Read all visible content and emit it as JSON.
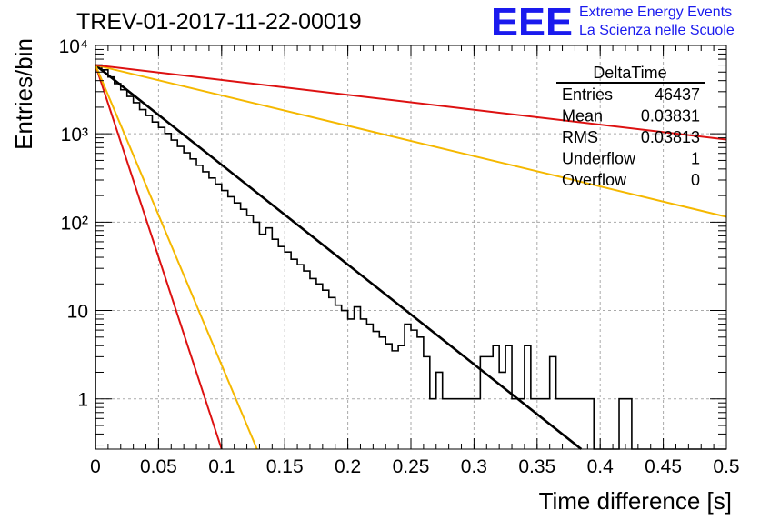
{
  "header": {
    "title": "TREV-01-2017-11-22-00019",
    "logo_text": "EEE",
    "logo_line1": "Extreme Energy Events",
    "logo_line2": "La Scienza nelle Scuole"
  },
  "stats": {
    "title": "DeltaTime",
    "rows": [
      {
        "label": "Entries",
        "value": "46437"
      },
      {
        "label": "Mean",
        "value": "0.03831"
      },
      {
        "label": "RMS",
        "value": "0.03813"
      },
      {
        "label": "Underflow",
        "value": "1"
      },
      {
        "label": "Overflow",
        "value": "0"
      }
    ]
  },
  "chart_data": {
    "type": "line",
    "title": "TREV-01-2017-11-22-00019",
    "xlabel": "Time difference [s]",
    "ylabel": "Entries/bin",
    "xlim": [
      0,
      0.5
    ],
    "ylim": [
      0.27,
      10000
    ],
    "yscale": "log",
    "grid": true,
    "x_ticks": [
      "0",
      "0.05",
      "0.1",
      "0.15",
      "0.2",
      "0.25",
      "0.3",
      "0.35",
      "0.4",
      "0.45",
      "0.5"
    ],
    "x_tick_values": [
      0,
      0.05,
      0.1,
      0.15,
      0.2,
      0.25,
      0.3,
      0.35,
      0.4,
      0.45,
      0.5
    ],
    "y_ticks": [
      {
        "label": "1",
        "value": 1
      },
      {
        "label": "10",
        "value": 10
      },
      {
        "label": "10²",
        "value": 100
      },
      {
        "label": "10³",
        "value": 1000
      },
      {
        "label": "10⁴",
        "value": 10000
      }
    ],
    "histogram": {
      "bin_width": 0.005,
      "x_start": 0,
      "counts": [
        6000,
        5300,
        4400,
        3700,
        3150,
        2650,
        2250,
        1880,
        1610,
        1360,
        1180,
        1010,
        850,
        720,
        610,
        520,
        440,
        372,
        316,
        270,
        228,
        194,
        165,
        140,
        119,
        100,
        73,
        86,
        64,
        53,
        46,
        38,
        33,
        28,
        23,
        20,
        17,
        14,
        11.5,
        10,
        8,
        11,
        8,
        7,
        5.8,
        5,
        4.2,
        3.5,
        4,
        7,
        6,
        5,
        3,
        1,
        2,
        1,
        1,
        1,
        1,
        1,
        1,
        3,
        3,
        4,
        2,
        4,
        1,
        1,
        4,
        1,
        1,
        1,
        3,
        1,
        1,
        1,
        1,
        1,
        1,
        0,
        0,
        0,
        0,
        1,
        1,
        0,
        0,
        0,
        0,
        0,
        0,
        0,
        0,
        0,
        0,
        0,
        0,
        0,
        0,
        0
      ]
    },
    "fits": [
      {
        "color": "#000000",
        "x": [
          0,
          0.385
        ],
        "y": [
          6000,
          0.27
        ]
      },
      {
        "color": "#dd1111",
        "x": [
          0,
          0.1
        ],
        "y": [
          6000,
          0.27
        ]
      },
      {
        "color": "#f5b800",
        "x": [
          0,
          0.128
        ],
        "y": [
          6000,
          0.27
        ]
      },
      {
        "color": "#f5b800",
        "x": [
          0,
          0.5
        ],
        "y": [
          6000,
          115
        ]
      },
      {
        "color": "#dd1111",
        "x": [
          0,
          0.5
        ],
        "y": [
          6000,
          860
        ]
      }
    ],
    "colors": {
      "logo": "#1a1aee",
      "grid": "#aaaaaa",
      "axes": "#000000"
    }
  }
}
